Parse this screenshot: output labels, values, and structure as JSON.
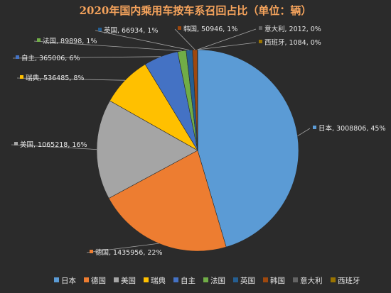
{
  "chart_data": {
    "type": "pie",
    "title": "2020年国内乘用车按车系召回占比（单位：辆）",
    "legend_position": "bottom",
    "series": [
      {
        "name": "日本",
        "value": 3008806,
        "percent": "45%",
        "color": "#5b9bd5"
      },
      {
        "name": "德国",
        "value": 1435956,
        "percent": "22%",
        "color": "#ed7d31"
      },
      {
        "name": "美国",
        "value": 1065218,
        "percent": "16%",
        "color": "#a5a5a5"
      },
      {
        "name": "瑞典",
        "value": 536485,
        "percent": "8%",
        "color": "#ffc000"
      },
      {
        "name": "自主",
        "value": 365006,
        "percent": "6%",
        "color": "#4472c4"
      },
      {
        "name": "法国",
        "value": 89898,
        "percent": "1%",
        "color": "#70ad47"
      },
      {
        "name": "英国",
        "value": 66934,
        "percent": "1%",
        "color": "#255e91"
      },
      {
        "name": "韩国",
        "value": 50946,
        "percent": "1%",
        "color": "#9e480e"
      },
      {
        "name": "意大利",
        "value": 2012,
        "percent": "0%",
        "color": "#636363"
      },
      {
        "name": "西班牙",
        "value": 1084,
        "percent": "0%",
        "color": "#997300"
      }
    ]
  }
}
